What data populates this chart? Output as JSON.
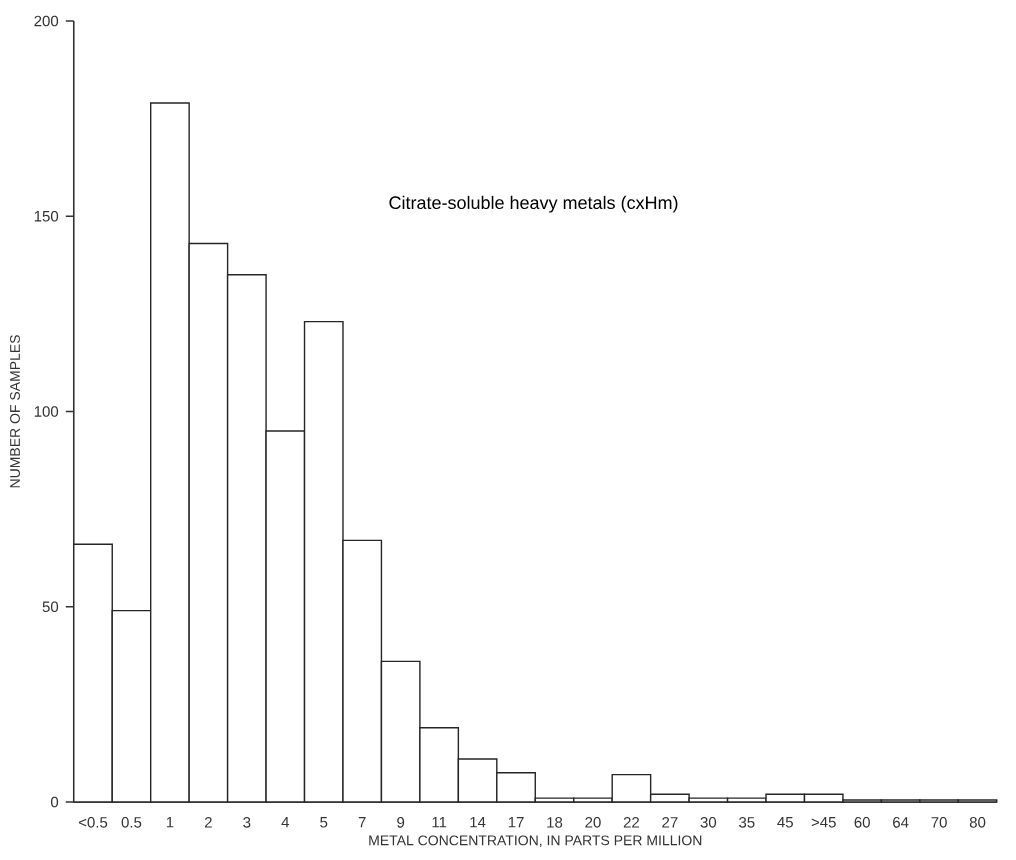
{
  "chart_data": {
    "type": "bar",
    "title": "Citrate-soluble heavy metals (cxHm)",
    "xlabel": "METAL CONCENTRATION, IN PARTS PER MILLION",
    "ylabel": "NUMBER OF SAMPLES",
    "categories": [
      "<0.5",
      "0.5",
      "1",
      "2",
      "3",
      "4",
      "5",
      "7",
      "9",
      "11",
      "14",
      "17",
      "18",
      "20",
      "22",
      "27",
      "30",
      "35",
      "45",
      ">45",
      "60",
      "64",
      "70",
      "80"
    ],
    "values": [
      66,
      49,
      179,
      143,
      135,
      95,
      123,
      67,
      36,
      19,
      11,
      7.5,
      1,
      1,
      7,
      2,
      1,
      1,
      2,
      2,
      0.5,
      0.5,
      0.5,
      0.5
    ],
    "color": "#ffffff",
    "ylim": [
      0,
      200
    ],
    "yticks": [
      0,
      50,
      100,
      150,
      200
    ]
  }
}
